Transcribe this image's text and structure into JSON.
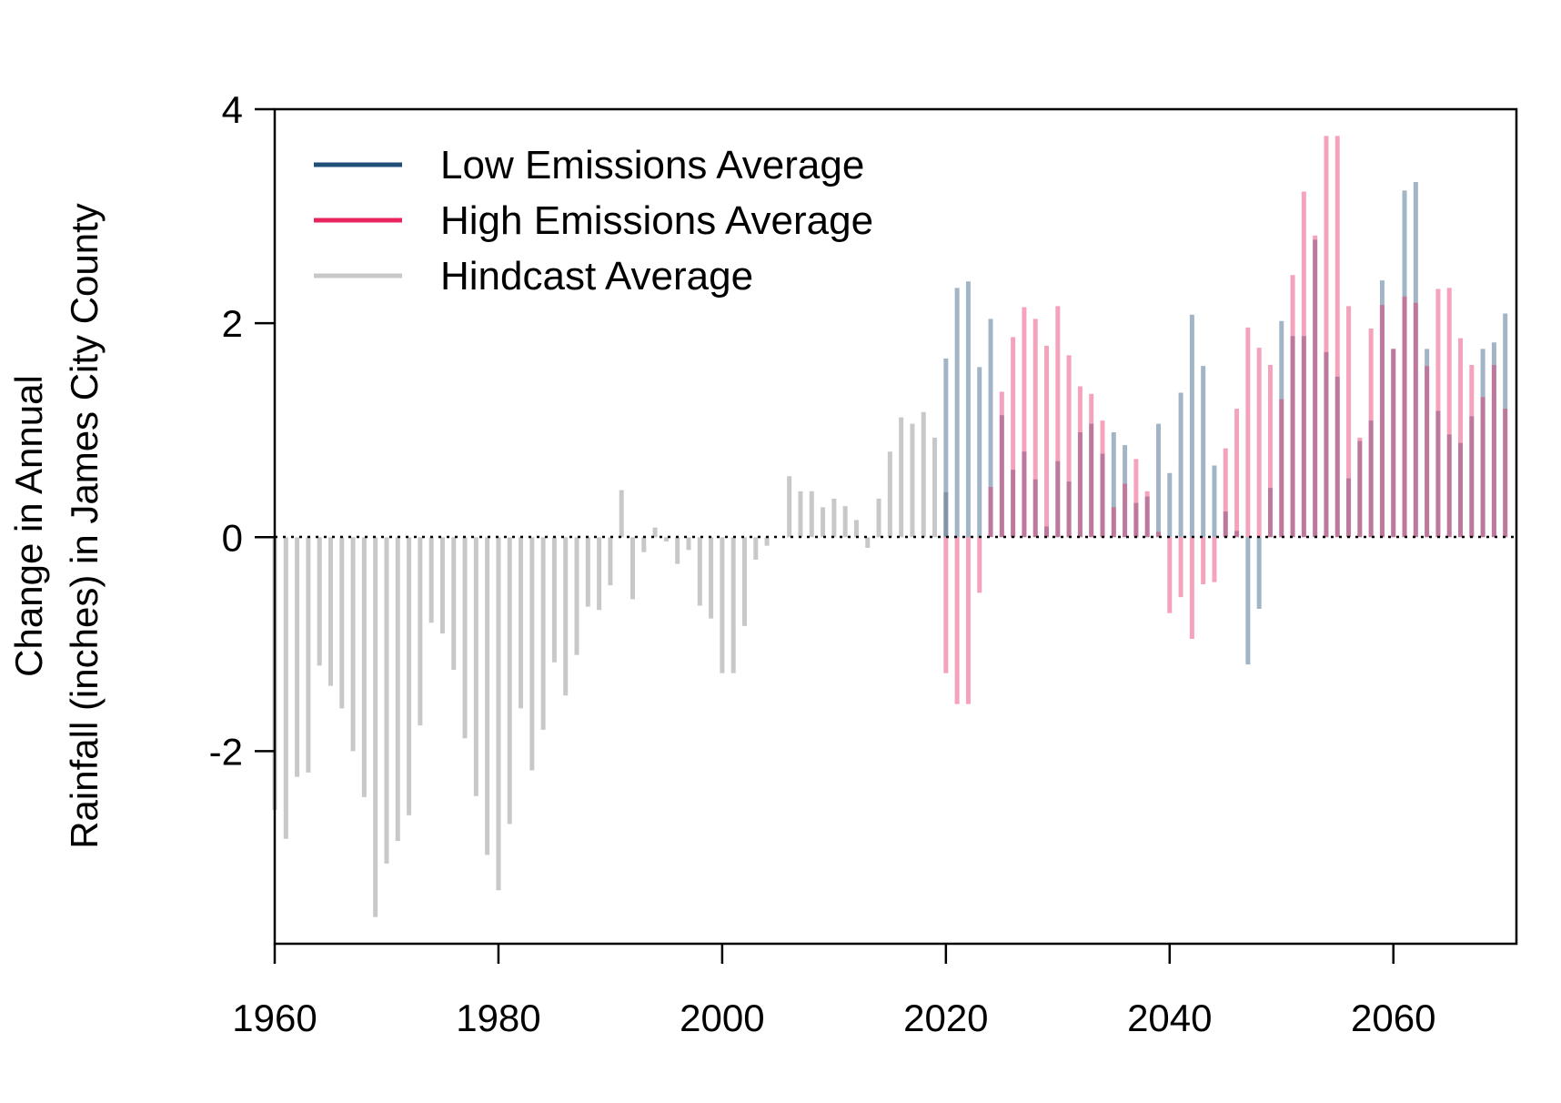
{
  "chart_data": {
    "type": "bar",
    "ylabel_line1": "Change in Annual",
    "ylabel_line2": "Rainfall (inches) in James City County",
    "xlim": [
      1960,
      2071
    ],
    "ylim": [
      -3.8,
      4.0
    ],
    "x_ticks": [
      1960,
      1980,
      2000,
      2020,
      2040,
      2060
    ],
    "y_ticks": [
      -2,
      0,
      2,
      4
    ],
    "y_tick_labels": [
      "-2",
      "0",
      "2",
      "4"
    ],
    "x_tick_labels": [
      "1960",
      "1980",
      "2000",
      "2020",
      "2040",
      "2060"
    ],
    "zero_line": "dotted",
    "legend_position": "top-left",
    "legend": [
      {
        "label": "Low Emissions Average",
        "color": "#1f4e79"
      },
      {
        "label": "High Emissions Average",
        "color": "#e8245f"
      },
      {
        "label": "Hindcast Average",
        "color": "#c8c8c8"
      }
    ],
    "series": [
      {
        "name": "Hindcast Average",
        "color": "#c8c8c8",
        "x_start": 1960,
        "values": [
          -2.55,
          -2.82,
          -2.24,
          -2.2,
          -1.2,
          -1.39,
          -1.6,
          -2.0,
          -2.43,
          -3.55,
          -3.05,
          -2.84,
          -2.6,
          -1.76,
          -0.8,
          -0.9,
          -1.24,
          -1.88,
          -2.42,
          -2.97,
          -3.3,
          -2.68,
          -1.6,
          -2.18,
          -1.8,
          -1.17,
          -1.48,
          -1.1,
          -0.65,
          -0.68,
          -0.45,
          0.44,
          -0.58,
          -0.14,
          0.09,
          -0.04,
          -0.25,
          -0.12,
          -0.64,
          -0.76,
          -1.27,
          -1.27,
          -0.83,
          -0.21,
          -0.08,
          0.0,
          0.57,
          0.43,
          0.43,
          0.28,
          0.36,
          0.29,
          0.16,
          -0.1,
          0.36,
          0.8,
          1.12,
          1.06,
          1.17,
          0.93,
          0.42
        ]
      },
      {
        "name": "Low Emissions Average",
        "color": "#1f4e79",
        "x_start": 2020,
        "values": [
          1.67,
          2.33,
          2.39,
          1.59,
          2.04,
          1.14,
          0.63,
          0.8,
          0.54,
          0.1,
          0.71,
          0.52,
          0.98,
          1.06,
          0.78,
          0.98,
          0.86,
          0.32,
          0.38,
          1.06,
          0.6,
          1.35,
          2.08,
          1.6,
          0.67,
          0.24,
          0.06,
          -1.19,
          -0.67,
          0.46,
          2.02,
          1.88,
          1.88,
          2.78,
          1.73,
          1.5,
          0.55,
          0.9,
          1.09,
          2.4,
          1.76,
          3.24,
          3.32,
          1.76,
          1.18,
          0.96,
          0.88,
          1.13,
          1.76,
          1.82,
          2.09
        ]
      },
      {
        "name": "High Emissions Average",
        "color": "#e8245f",
        "x_start": 2020,
        "values": [
          -1.27,
          -1.56,
          -1.56,
          -0.52,
          0.47,
          1.36,
          1.87,
          2.15,
          2.04,
          1.79,
          2.16,
          1.7,
          1.41,
          1.34,
          1.09,
          0.28,
          0.5,
          0.73,
          0.43,
          0.05,
          -0.71,
          -0.56,
          -0.95,
          -0.44,
          -0.42,
          0.83,
          1.2,
          1.96,
          1.77,
          1.61,
          1.29,
          2.45,
          3.23,
          2.82,
          3.75,
          3.75,
          2.16,
          0.93,
          1.95,
          2.17,
          1.76,
          2.25,
          2.19,
          1.6,
          2.32,
          2.33,
          1.86,
          1.61,
          1.31,
          1.61,
          1.2
        ]
      }
    ]
  }
}
